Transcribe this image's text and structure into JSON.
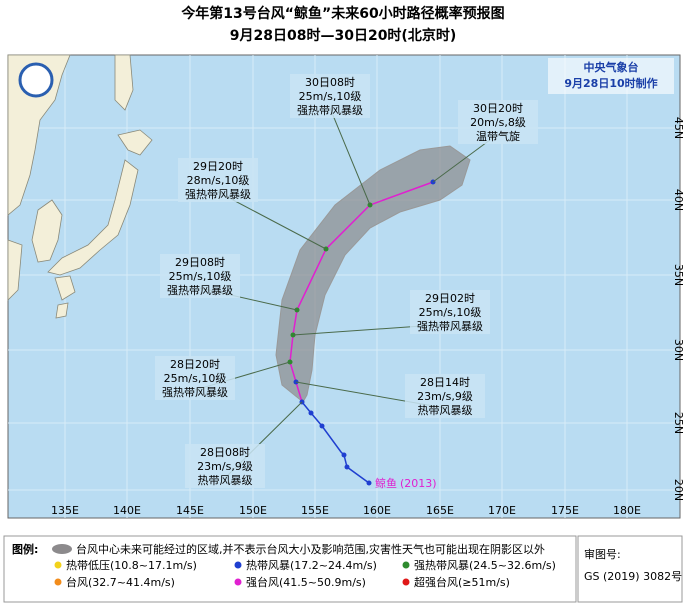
{
  "header": {
    "title": "今年第13号台风“鲸鱼”未来60小时路径概率预报图",
    "subtitle": "9月28日08时—30日20时(北京时)"
  },
  "agency": {
    "name": "中央气象台",
    "issued": "9月28日10时制作"
  },
  "callouts": [
    {
      "time": "30日08时",
      "wind": "25m/s,10级",
      "category": "强热带风暴级"
    },
    {
      "time": "30日20时",
      "wind": "20m/s,8级",
      "category": "温带气旋"
    },
    {
      "time": "29日20时",
      "wind": "28m/s,10级",
      "category": "强热带风暴级"
    },
    {
      "time": "29日08时",
      "wind": "25m/s,10级",
      "category": "强热带风暴级"
    },
    {
      "time": "29日02时",
      "wind": "25m/s,10级",
      "category": "强热带风暴级"
    },
    {
      "time": "28日20时",
      "wind": "25m/s,10级",
      "category": "强热带风暴级"
    },
    {
      "time": "28日14时",
      "wind": "23m/s,9级",
      "category": "热带风暴级"
    },
    {
      "time": "28日08时",
      "wind": "23m/s,9级",
      "category": "热带风暴级"
    }
  ],
  "storm_label": {
    "name": "鲸鱼",
    "code": "(2013)"
  },
  "axes": {
    "longitudes": [
      "135E",
      "140E",
      "145E",
      "150E",
      "155E",
      "160E",
      "165E",
      "170E",
      "175E",
      "180E"
    ],
    "latitudes": [
      "45N",
      "40N",
      "35N",
      "30N",
      "25N",
      "20N"
    ]
  },
  "legend": {
    "title": "图例:",
    "cone": "台风中心未来可能经过的区域,并不表示台风大小及影响范围,灾害性天气也可能出现在阴影区以外",
    "items": [
      {
        "label": "热带低压(10.8~17.1m/s)",
        "color": "#f2d21b"
      },
      {
        "label": "热带风暴(17.2~24.4m/s)",
        "color": "#1f3fd0"
      },
      {
        "label": "强热带风暴(24.5~32.6m/s)",
        "color": "#2e8b2e"
      },
      {
        "label": "台风(32.7~41.4m/s)",
        "color": "#f28c1b"
      },
      {
        "label": "强台风(41.5~50.9m/s)",
        "color": "#e020d0"
      },
      {
        "label": "超强台风(≥51m/s)",
        "color": "#e01818"
      }
    ]
  },
  "review": {
    "label": "审图号:",
    "number": "GS (2019) 3082号"
  }
}
